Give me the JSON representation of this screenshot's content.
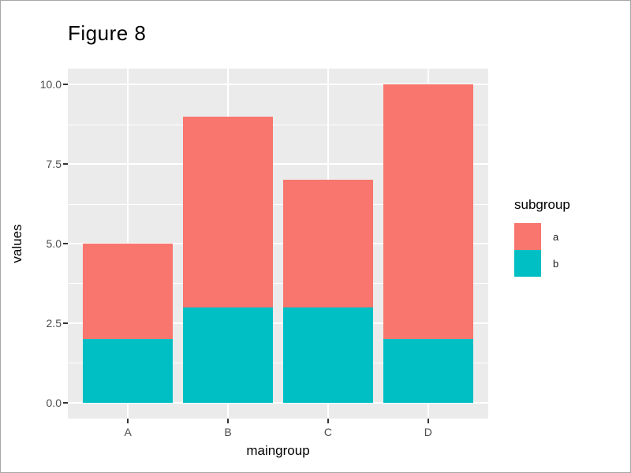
{
  "window": {
    "background": "#ffffff",
    "border_color": "#a6a6a6"
  },
  "chart_data": {
    "type": "bar",
    "stacked": true,
    "title": "Figure 8",
    "xlabel": "maingroup",
    "ylabel": "values",
    "categories": [
      "A",
      "B",
      "C",
      "D"
    ],
    "series": [
      {
        "name": "b",
        "color": "#00BFC4",
        "values": [
          2,
          3,
          3,
          2
        ]
      },
      {
        "name": "a",
        "color": "#F8766D",
        "values": [
          3,
          6,
          4,
          8
        ]
      }
    ],
    "stack_totals": [
      5,
      9,
      7,
      10
    ],
    "ylim": [
      -0.5,
      10.5
    ],
    "ytick_values": [
      0,
      2.5,
      5,
      7.5,
      10
    ],
    "ytick_labels": [
      "0.0",
      "2.5",
      "5.0",
      "7.5",
      "10.0"
    ],
    "minor_gridlines": [
      1.25,
      3.75,
      6.25,
      8.75
    ],
    "grid": true,
    "panel_background": "#EBEBEB",
    "grid_color": "#FFFFFF",
    "tick_mark_color": "#333333",
    "axis_text_color": "#4D4D4D",
    "title_color": "#000000",
    "legend": {
      "position": "right",
      "title": "subgroup",
      "entries": [
        {
          "label": "a",
          "color": "#F8766D"
        },
        {
          "label": "b",
          "color": "#00BFC4"
        }
      ]
    }
  }
}
